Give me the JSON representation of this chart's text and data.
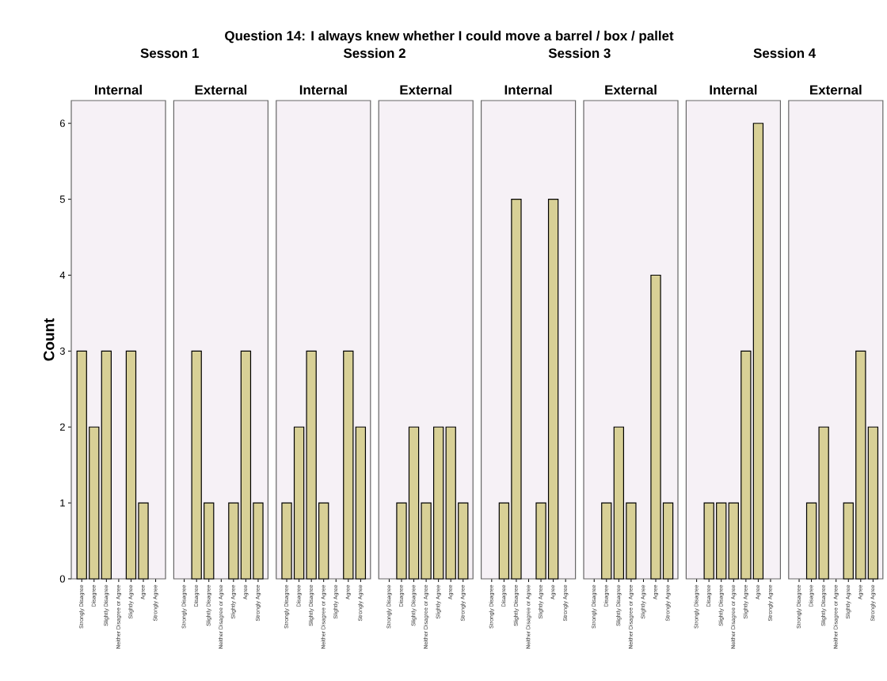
{
  "chart_data": [
    {
      "type": "bar",
      "title": "Internal",
      "subtitle": "Sesson 1",
      "annotations": [
        "Question 14: I always knew whether I could move a barrel / box / pallet"
      ],
      "ylabel": "Count",
      "categories": [
        "Strongly Disagree",
        "Disagree",
        "Slightly Disagree",
        "Neither Disagree or Agree",
        "Slightly Agree",
        "Agree",
        "Strongly Agree"
      ],
      "values": [
        3,
        2,
        3,
        null,
        3,
        1,
        null
      ],
      "color": "#d8d096",
      "ylim": [
        0,
        6.3
      ],
      "yticks": [
        0,
        1,
        2,
        3,
        4,
        5,
        6
      ]
    },
    {
      "type": "bar",
      "title": "External",
      "categories": [
        "Strongly Disagree",
        "Disagree",
        "Slightly Disagree",
        "Neither Disagree or Agree",
        "Slightly Agree",
        "Agree",
        "Strongly Agree"
      ],
      "values": [
        null,
        3,
        1,
        null,
        1,
        3,
        1
      ],
      "color": "#d8d096",
      "ylim": [
        0,
        6.3
      ],
      "tick_labels": "x"
    },
    {
      "type": "bar",
      "title": "Internal",
      "subtitle": "Session 2",
      "categories": [
        "Strongly Disagree",
        "Disagree",
        "Slightly Disagree",
        "Neither Disagree or Agree",
        "Slightly Agree",
        "Agree",
        "Strongly Agree"
      ],
      "values": [
        1,
        2,
        3,
        1,
        null,
        3,
        2
      ],
      "color": "#d8d096",
      "ylim": [
        0,
        6.3
      ],
      "tick_labels": "x"
    },
    {
      "type": "bar",
      "title": "External",
      "categories": [
        "Strongly Disagree",
        "Disagree",
        "Slightly Disagree",
        "Neither Disagree or Agree",
        "Slightly Agree",
        "Agree",
        "Strongly Agree"
      ],
      "values": [
        null,
        1,
        2,
        1,
        2,
        2,
        1
      ],
      "color": "#d8d096",
      "ylim": [
        0,
        6.3
      ],
      "tick_labels": "x"
    },
    {
      "type": "bar",
      "title": "Internal",
      "subtitle": "Session 3",
      "categories": [
        "Strongly Disagree",
        "Disagree",
        "Slightly Disagree",
        "Neither Disagree or Agree",
        "Slightly Agree",
        "Agree",
        "Strongly Agree"
      ],
      "values": [
        null,
        1,
        5,
        null,
        1,
        5,
        null
      ],
      "color": "#d8d096",
      "ylim": [
        0,
        6.3
      ],
      "tick_labels": "x"
    },
    {
      "type": "bar",
      "title": "External",
      "categories": [
        "Strongly Disagree",
        "Disagree",
        "Slightly Disagree",
        "Neither Disagree or Agree",
        "Slightly Agree",
        "Agree",
        "Strongly Agree"
      ],
      "values": [
        null,
        1,
        2,
        1,
        null,
        4,
        1
      ],
      "color": "#d8d096",
      "ylim": [
        0,
        6.3
      ],
      "tick_labels": "x"
    },
    {
      "type": "bar",
      "title": "Internal",
      "subtitle": "Session 4",
      "categories": [
        "Strongly Disagree",
        "Disagree",
        "Slightly Disagree",
        "Neither Disagree or Agree",
        "Slightly Agree",
        "Agree",
        "Strongly Agree"
      ],
      "values": [
        null,
        1,
        1,
        1,
        3,
        6,
        null
      ],
      "color": "#d8d096",
      "ylim": [
        0,
        6.3
      ],
      "tick_labels": "x"
    },
    {
      "type": "bar",
      "title": "External",
      "categories": [
        "Strongly Disagree",
        "Disagree",
        "Slightly Disagree",
        "Neither Disagree or Agree",
        "Slightly Agree",
        "Agree",
        "Strongly Agree"
      ],
      "values": [
        null,
        1,
        2,
        null,
        1,
        3,
        2
      ],
      "color": "#d8d096",
      "ylim": [
        0,
        6.3
      ],
      "tick_labels": "x"
    }
  ]
}
